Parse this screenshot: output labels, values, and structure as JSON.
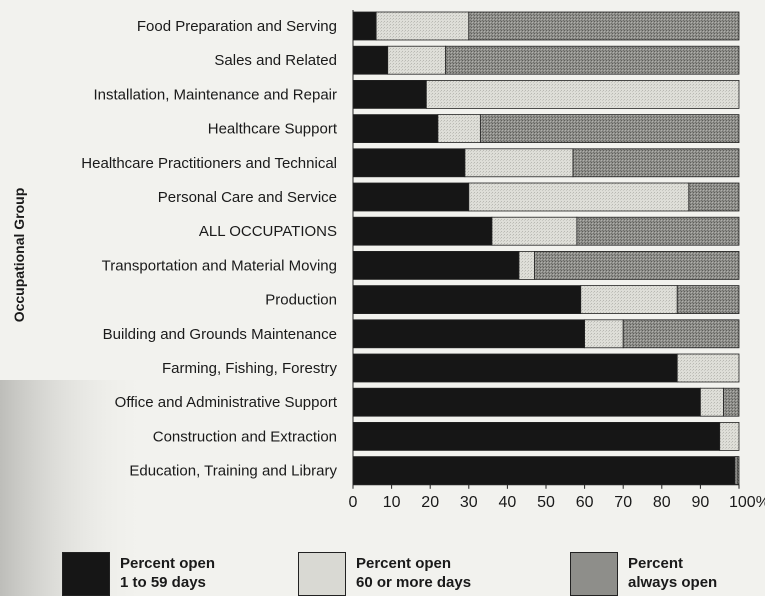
{
  "chart_data": {
    "type": "bar",
    "orientation": "horizontal",
    "stacked": true,
    "ylabel": "Occupational Group",
    "categories": [
      "Food Preparation and Serving",
      "Sales and Related",
      "Installation, Maintenance and Repair",
      "Healthcare Support",
      "Healthcare Practitioners and Technical",
      "Personal Care and Service",
      "ALL OCCUPATIONS",
      "Transportation and Material Moving",
      "Production",
      "Building and Grounds Maintenance",
      "Farming, Fishing, Forestry",
      "Office and Administrative Support",
      "Construction and Extraction",
      "Education, Training and Library"
    ],
    "series": [
      {
        "name": "Percent open 1 to 59 days",
        "color": "#161616",
        "values": [
          6,
          9,
          19,
          22,
          29,
          30,
          36,
          43,
          59,
          60,
          84,
          90,
          95,
          99
        ]
      },
      {
        "name": "Percent open 60 or more days",
        "color": "#d9d9d3",
        "values": [
          24,
          15,
          81,
          11,
          28,
          57,
          22,
          4,
          25,
          10,
          16,
          6,
          5,
          0.5
        ]
      },
      {
        "name": "Percent always open",
        "color": "#8e8e8a",
        "values": [
          70,
          76,
          0,
          67,
          43,
          13,
          42,
          53,
          16,
          30,
          0,
          4,
          0,
          0.5
        ]
      }
    ],
    "xticks": [
      "0",
      "10",
      "20",
      "30",
      "40",
      "50",
      "60",
      "70",
      "80",
      "90",
      "100%"
    ],
    "xlim": [
      0,
      100
    ],
    "legend": {
      "placement": "bottom",
      "items": [
        {
          "line1": "Percent open",
          "line2": "1 to 59 days"
        },
        {
          "line1": "Percent open",
          "line2": "60 or more days"
        },
        {
          "line1": "Percent",
          "line2": "always open"
        }
      ]
    }
  }
}
